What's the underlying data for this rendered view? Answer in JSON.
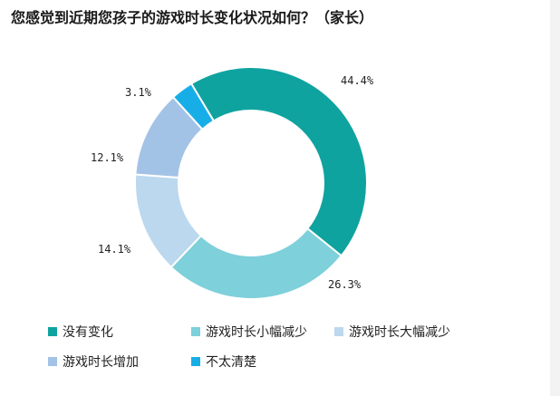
{
  "title": "您感觉到近期您孩子的游戏时长变化状况如何？（家长）",
  "chart_data": {
    "type": "pie",
    "donut": true,
    "title": "您感觉到近期您孩子的游戏时长变化状况如何？（家长）",
    "categories": [
      "没有变化",
      "游戏时长小幅减少",
      "游戏时长大幅减少",
      "游戏时长增加",
      "不太清楚"
    ],
    "values": [
      44.4,
      26.3,
      14.1,
      12.1,
      3.1
    ],
    "labels": [
      "44.4%",
      "26.3%",
      "14.1%",
      "12.1%",
      "3.1%"
    ],
    "colors": [
      "#0fa3a0",
      "#7ed0da",
      "#bcd8ee",
      "#a3c3e6",
      "#17aee8"
    ],
    "legend": "bottom"
  }
}
